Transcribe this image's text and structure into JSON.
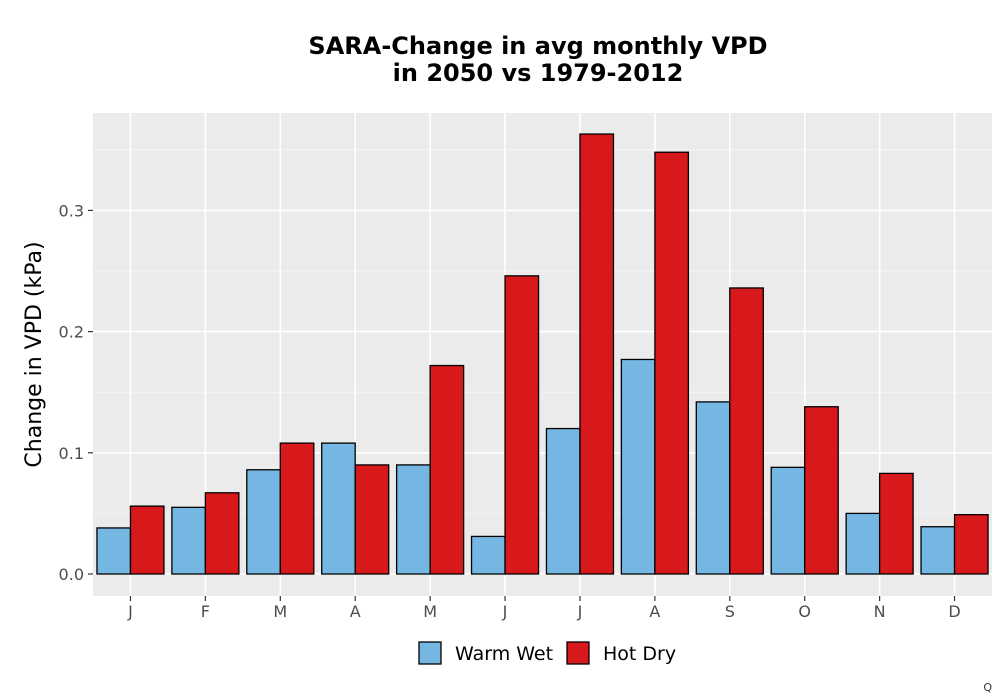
{
  "chart_data": {
    "type": "bar",
    "title": [
      "SARA-Change in avg monthly VPD",
      "in 2050 vs 1979-2012"
    ],
    "xlabel": "",
    "ylabel": "Change in VPD (kPa)",
    "categories": [
      "J",
      "F",
      "M",
      "A",
      "M",
      "J",
      "J",
      "A",
      "S",
      "O",
      "N",
      "D"
    ],
    "series": [
      {
        "name": "Warm Wet",
        "color": "#74b7e2",
        "values": [
          0.038,
          0.055,
          0.086,
          0.108,
          0.09,
          0.031,
          0.12,
          0.177,
          0.142,
          0.088,
          0.05,
          0.039
        ]
      },
      {
        "name": "Hot Dry",
        "color": "#d7191c",
        "values": [
          0.056,
          0.067,
          0.108,
          0.09,
          0.172,
          0.246,
          0.363,
          0.348,
          0.236,
          0.138,
          0.083,
          0.049
        ]
      }
    ],
    "yticks": [
      0.0,
      0.1,
      0.2,
      0.3
    ],
    "ytick_labels": [
      "0.0",
      "0.1",
      "0.2",
      "0.3"
    ],
    "ylim": [
      -0.018,
      0.382
    ],
    "grid": true,
    "panel_color": "#ebebeb",
    "legend_position": "bottom"
  },
  "corner_mark": "Q"
}
